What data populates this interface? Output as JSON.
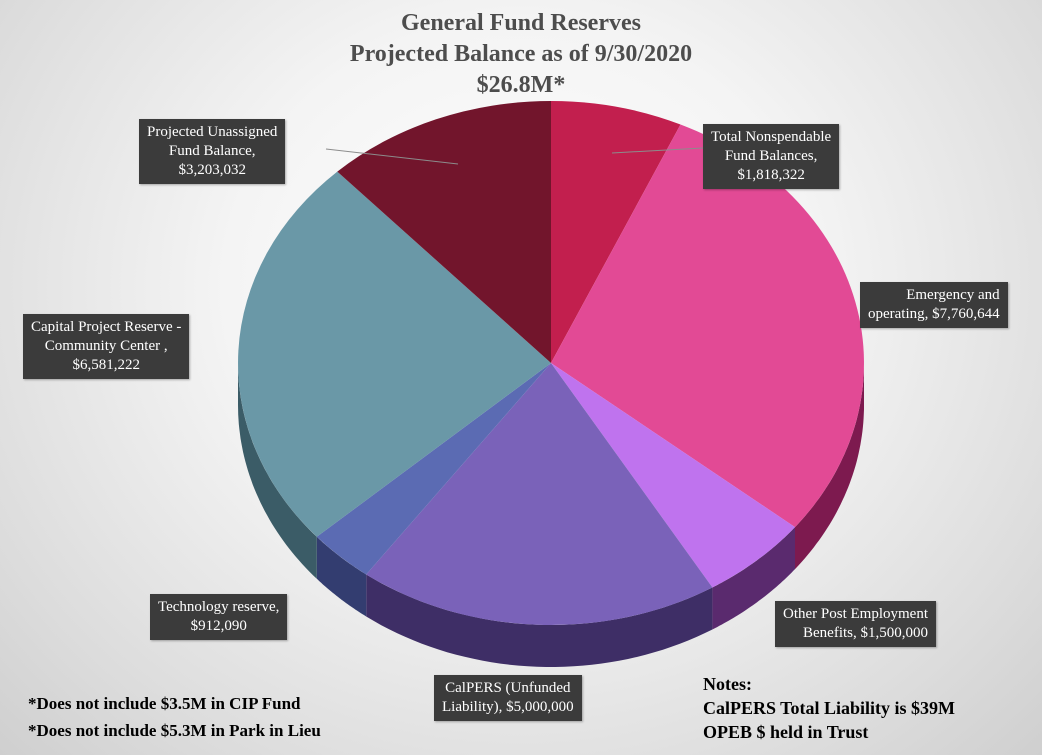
{
  "title": {
    "line1": "General Fund Reserves",
    "line2": "Projected Balance as of  9/30/2020",
    "line3": "$26.8M*"
  },
  "chart_data": {
    "type": "pie",
    "title": "General Fund Reserves Projected Balance as of 9/30/2020 $26.8M*",
    "slices": [
      {
        "label": "Total Nonspendable Fund Balances",
        "value": 1818322,
        "color": "#c21f4e",
        "side": "#8a1236"
      },
      {
        "label": "Emergency and operating",
        "value": 7760644,
        "color": "#e24a95",
        "side": "#7d1a4f"
      },
      {
        "label": "Other Post Employment Benefits",
        "value": 1500000,
        "color": "#bf73ee",
        "side": "#5a2a6e"
      },
      {
        "label": "CalPERS (Unfunded Liability)",
        "value": 5000000,
        "color": "#7a62b9",
        "side": "#3e2e66"
      },
      {
        "label": "Technology reserve",
        "value": 912090,
        "color": "#5b6bb3",
        "side": "#333d70"
      },
      {
        "label": "Capital Project Reserve - Community Center",
        "value": 6581222,
        "color": "#6a98a7",
        "side": "#3b5c67"
      },
      {
        "label": "Projected Unassigned Fund Balance",
        "value": 3203032,
        "color": "#72152c",
        "side": "#4a0d1c"
      }
    ]
  },
  "labels": {
    "nonspendable": {
      "line1": "Total Nonspendable",
      "line2": "Fund Balances,",
      "line3": "$1,818,322"
    },
    "emergency": {
      "line1": "Emergency and",
      "line2": "operating,  $7,760,644"
    },
    "opeb": {
      "line1": "Other Post Employment",
      "line2": "Benefits,  $1,500,000"
    },
    "calpers": {
      "line1": "CalPERS (Unfunded",
      "line2": "Liability),  $5,000,000"
    },
    "technology": {
      "line1": "Technology reserve,",
      "line2": "$912,090"
    },
    "capital": {
      "line1": "Capital Project Reserve -",
      "line2": "Community Center ,",
      "line3": "$6,581,222"
    },
    "unassigned": {
      "line1": "Projected Unassigned",
      "line2": "Fund Balance,",
      "line3": "$3,203,032"
    }
  },
  "footnotes": {
    "line1": "*Does not include $3.5M in CIP Fund",
    "line2": "*Does not include $5.3M in Park in Lieu"
  },
  "notes": {
    "heading": "Notes:",
    "line1": "CalPERS Total Liability is $39M",
    "line2": "OPEB $ held in Trust"
  }
}
